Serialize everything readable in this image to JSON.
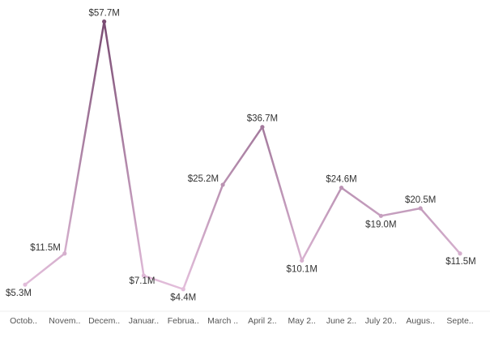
{
  "chart_data": {
    "type": "line",
    "title": "",
    "xlabel": "",
    "ylabel": "",
    "categories": [
      "Octob..",
      "Novem..",
      "Decem..",
      "Januar..",
      "Februa..",
      "March ..",
      "April 2..",
      "May 2..",
      "June 2..",
      "July 20..",
      "Augus..",
      "Septe.."
    ],
    "values": [
      5.3,
      11.5,
      57.7,
      7.1,
      4.4,
      25.2,
      36.7,
      10.1,
      24.6,
      19.0,
      20.5,
      11.5
    ],
    "value_labels": [
      "$5.3M",
      "$11.5M",
      "$57.7M",
      "$7.1M",
      "$4.4M",
      "$25.2M",
      "$36.7M",
      "$10.1M",
      "$24.6M",
      "$19.0M",
      "$20.5M",
      "$11.5M"
    ],
    "ylim": [
      0,
      62
    ],
    "grid": false,
    "legend": "none",
    "color_low": "#e3bedb",
    "color_high": "#7a4c73"
  }
}
